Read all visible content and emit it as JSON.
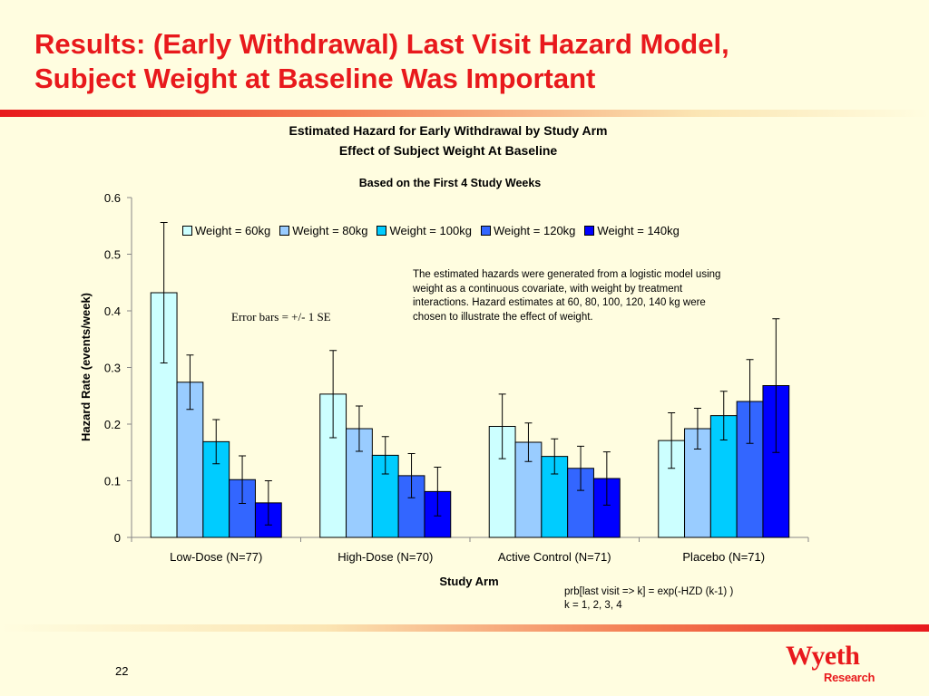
{
  "slide": {
    "title_line1": "Results: (Early Withdrawal) Last Visit Hazard Model,",
    "title_line2": "Subject Weight at Baseline Was Important",
    "page_number": "22",
    "note": "The estimated hazards were generated from a logistic model using weight as a continuous covariate, with weight by treatment interactions.  Hazard estimates at 60, 80, 100, 120, 140 kg were chosen to illustrate the effect of weight.",
    "error_bars_note": "Error bars = +/- 1 SE",
    "formula_line1": "prb[last visit => k] = exp(-HZD (k-1) )",
    "formula_line2": "k = 1, 2, 3, 4",
    "logo_word": "Wyeth",
    "logo_sub": "Research"
  },
  "chart_data": {
    "type": "bar",
    "title": "Estimated Hazard for Early Withdrawal by Study Arm",
    "subtitle": "Effect of Subject Weight At Baseline",
    "caption": "Based on the First 4 Study Weeks",
    "xlabel": "Study Arm",
    "ylabel": "Hazard Rate (events/week)",
    "ylim": [
      0,
      0.6
    ],
    "yticks": [
      "0",
      "0.1",
      "0.2",
      "0.3",
      "0.4",
      "0.5",
      "0.6"
    ],
    "ytick_values": [
      0,
      0.1,
      0.2,
      0.3,
      0.4,
      0.5,
      0.6
    ],
    "legend_position": "top",
    "grid": false,
    "categories": [
      "Low-Dose (N=77)",
      "High-Dose (N=70)",
      "Active Control (N=71)",
      "Placebo (N=71)"
    ],
    "series": [
      {
        "name": "Weight = 60kg",
        "color": "#ccffff",
        "values": [
          0.432,
          0.253,
          0.196,
          0.171
        ],
        "se": [
          0.124,
          0.077,
          0.057,
          0.049
        ]
      },
      {
        "name": "Weight = 80kg",
        "color": "#99ccff",
        "values": [
          0.274,
          0.192,
          0.168,
          0.192
        ],
        "se": [
          0.048,
          0.04,
          0.034,
          0.036
        ]
      },
      {
        "name": "Weight = 100kg",
        "color": "#00ccff",
        "values": [
          0.169,
          0.145,
          0.143,
          0.215
        ],
        "se": [
          0.039,
          0.033,
          0.031,
          0.043
        ]
      },
      {
        "name": "Weight = 120kg",
        "color": "#3366ff",
        "values": [
          0.102,
          0.109,
          0.122,
          0.24
        ],
        "se": [
          0.042,
          0.039,
          0.039,
          0.074
        ]
      },
      {
        "name": "Weight = 140kg",
        "color": "#0000ff",
        "values": [
          0.061,
          0.081,
          0.104,
          0.268
        ],
        "se": [
          0.039,
          0.043,
          0.047,
          0.118
        ]
      }
    ]
  }
}
